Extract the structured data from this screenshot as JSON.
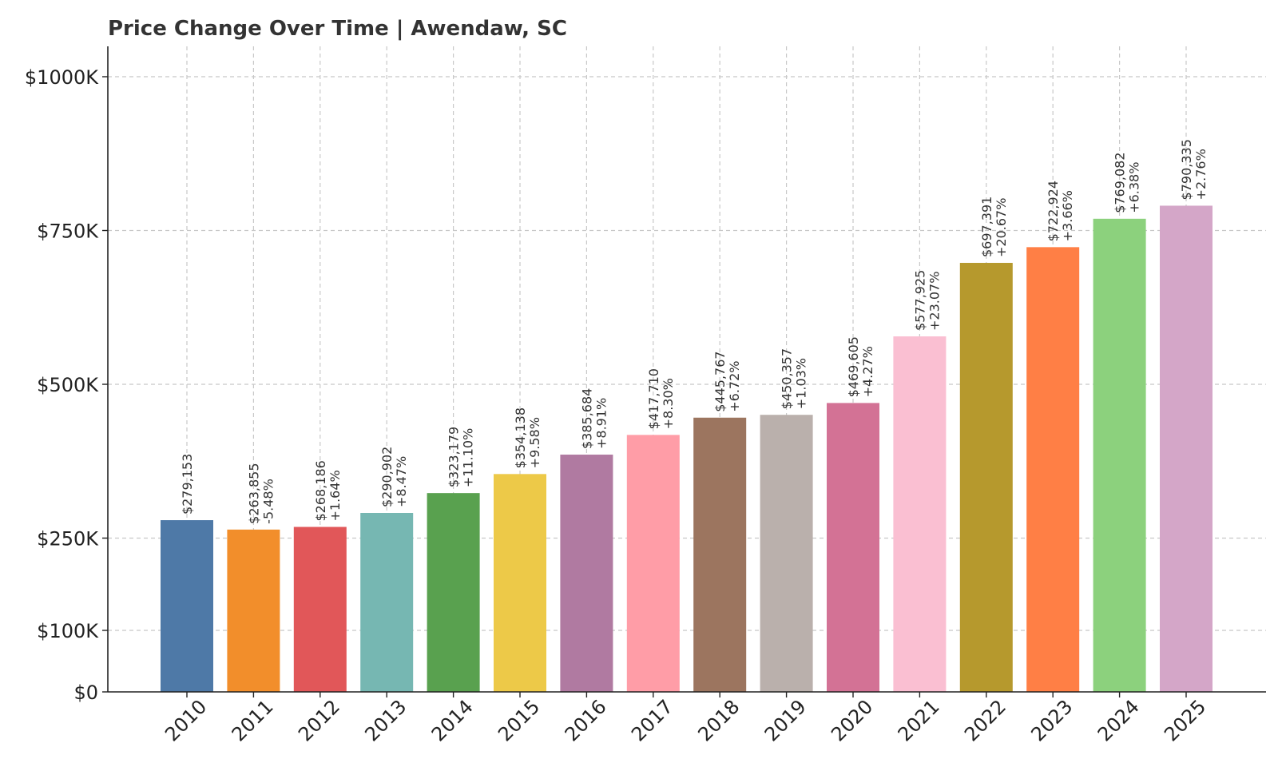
{
  "chart_data": {
    "type": "bar",
    "title": "Price Change Over Time | Awendaw, SC",
    "xlabel": "",
    "ylabel": "",
    "categories": [
      "2010",
      "2011",
      "2012",
      "2013",
      "2014",
      "2015",
      "2016",
      "2017",
      "2018",
      "2019",
      "2020",
      "2021",
      "2022",
      "2023",
      "2024",
      "2025"
    ],
    "values": [
      279153,
      263855,
      268186,
      290902,
      323179,
      354138,
      385684,
      417710,
      445767,
      450357,
      469605,
      577925,
      697391,
      722924,
      769082,
      790335
    ],
    "value_labels": [
      "$279,153",
      "$263,855",
      "$268,186",
      "$290,902",
      "$323,179",
      "$354,138",
      "$385,684",
      "$417,710",
      "$445,767",
      "$450,357",
      "$469,605",
      "$577,925",
      "$697,391",
      "$722,924",
      "$769,082",
      "$790,335"
    ],
    "change_labels": [
      "",
      "-5.48%",
      "+1.64%",
      "+8.47%",
      "+11.10%",
      "+9.58%",
      "+8.91%",
      "+8.30%",
      "+6.72%",
      "+1.03%",
      "+4.27%",
      "+23.07%",
      "+20.67%",
      "+3.66%",
      "+6.38%",
      "+2.76%"
    ],
    "colors": [
      "#4e79a7",
      "#f28e2b",
      "#e15759",
      "#76b7b2",
      "#59a14f",
      "#edc948",
      "#b07aa1",
      "#ff9da7",
      "#9c755f",
      "#bab0ac",
      "#d37295",
      "#fabfd2",
      "#b6992d",
      "#ff7f45",
      "#8cd17d",
      "#d4a6c8"
    ],
    "ylim": [
      0,
      1050000
    ],
    "yticks": [
      0,
      100000,
      250000,
      500000,
      750000,
      1000000
    ],
    "ytick_labels": [
      "$0",
      "$100K",
      "$250K",
      "$500K",
      "$750K",
      "$1000K"
    ],
    "grid": true,
    "legend": "none"
  }
}
